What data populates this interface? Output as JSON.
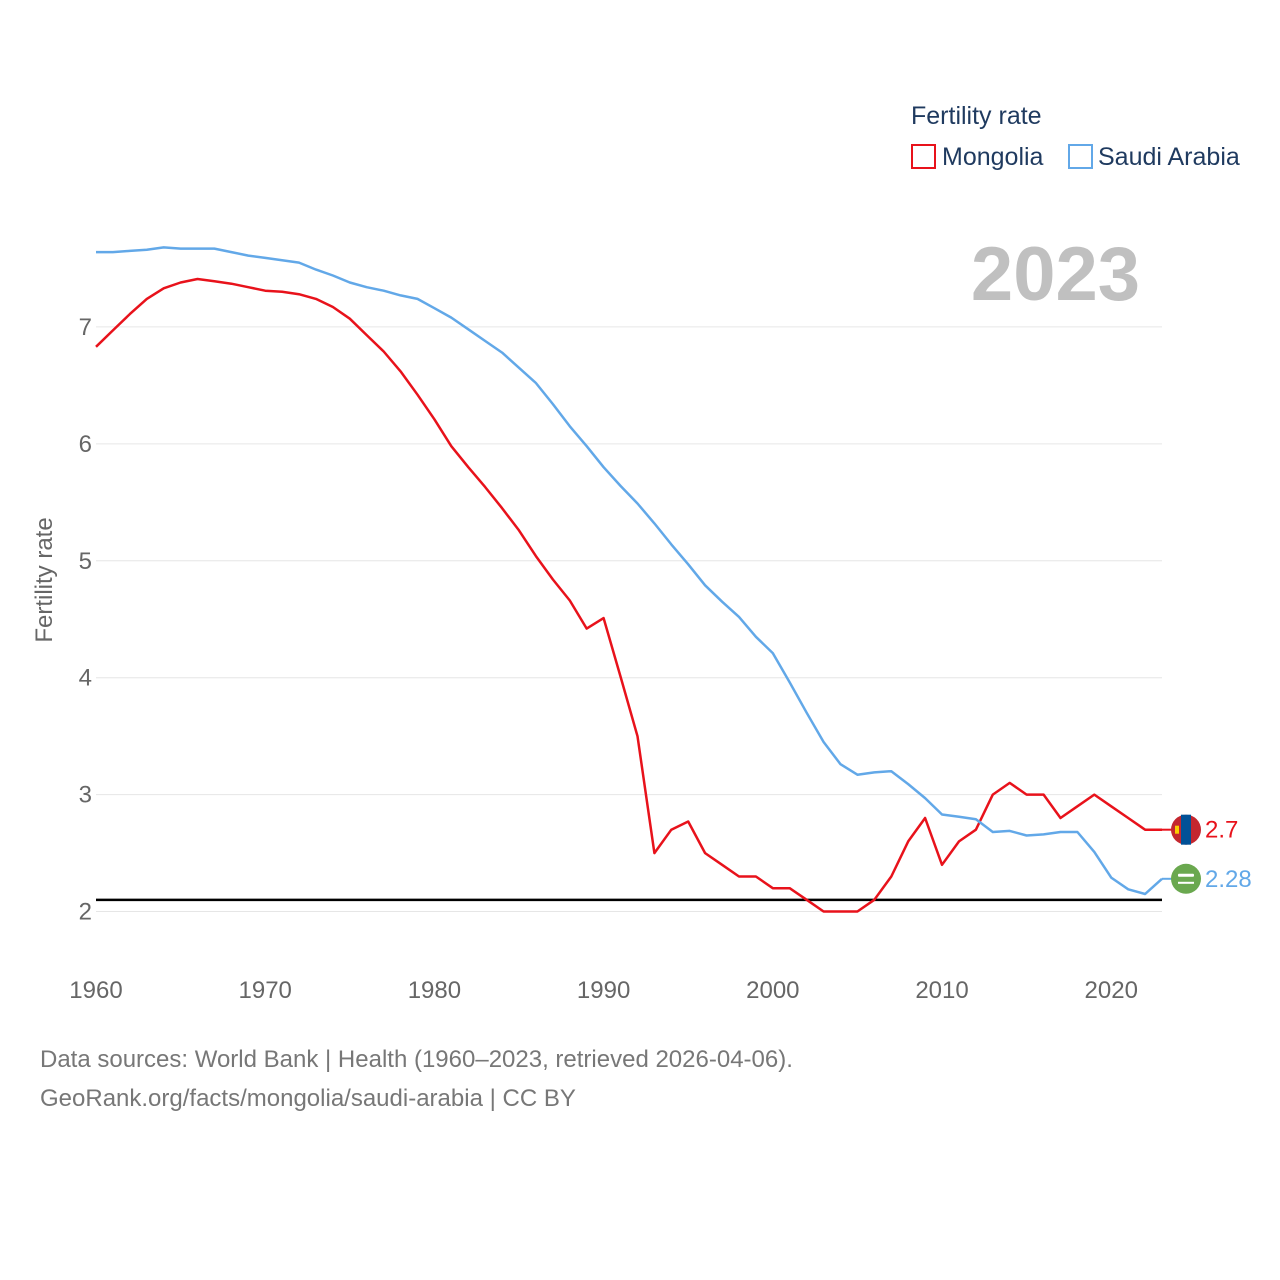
{
  "colors": {
    "mongolia": "#e8121b",
    "saudi_arabia": "#62a8e8",
    "grid": "#e6e6e6",
    "reference": "#000000"
  },
  "chart_data": {
    "type": "line",
    "title": "Fertility rate",
    "ylabel": "Fertility rate",
    "xlabel": "",
    "year_label": "2023",
    "xlim": [
      1960,
      2023
    ],
    "ylim": [
      1.5,
      8
    ],
    "x_ticks": [
      1960,
      1970,
      1980,
      1990,
      2000,
      2010,
      2020
    ],
    "y_ticks": [
      2,
      3,
      4,
      5,
      6,
      7
    ],
    "grid": true,
    "legend_position": "top-right",
    "reference_line": 2.1,
    "x": [
      1960,
      1961,
      1962,
      1963,
      1964,
      1965,
      1966,
      1967,
      1968,
      1969,
      1970,
      1971,
      1972,
      1973,
      1974,
      1975,
      1976,
      1977,
      1978,
      1979,
      1980,
      1981,
      1982,
      1983,
      1984,
      1985,
      1986,
      1987,
      1988,
      1989,
      1990,
      1991,
      1992,
      1993,
      1994,
      1995,
      1996,
      1997,
      1998,
      1999,
      2000,
      2001,
      2002,
      2003,
      2004,
      2005,
      2006,
      2007,
      2008,
      2009,
      2010,
      2011,
      2012,
      2013,
      2014,
      2015,
      2016,
      2017,
      2018,
      2019,
      2020,
      2021,
      2022,
      2023
    ],
    "series": [
      {
        "name": "Mongolia",
        "color_key": "mongolia",
        "end_label": "2.7",
        "values": [
          6.83,
          6.97,
          7.11,
          7.24,
          7.33,
          7.38,
          7.41,
          7.39,
          7.37,
          7.34,
          7.31,
          7.3,
          7.28,
          7.24,
          7.17,
          7.07,
          6.93,
          6.79,
          6.62,
          6.42,
          6.21,
          5.98,
          5.8,
          5.63,
          5.45,
          5.26,
          5.04,
          4.84,
          4.66,
          4.42,
          4.51,
          4.01,
          3.5,
          2.5,
          2.7,
          2.77,
          2.5,
          2.4,
          2.3,
          2.3,
          2.2,
          2.2,
          2.1,
          2.0,
          2.0,
          2.0,
          2.1,
          2.3,
          2.6,
          2.8,
          2.4,
          2.6,
          2.7,
          3.0,
          3.1,
          3.0,
          3.0,
          2.8,
          2.9,
          3.0,
          2.9,
          2.8,
          2.7,
          2.7
        ]
      },
      {
        "name": "Saudi Arabia",
        "color_key": "saudi_arabia",
        "end_label": "2.28",
        "values": [
          7.64,
          7.64,
          7.65,
          7.66,
          7.68,
          7.67,
          7.67,
          7.67,
          7.64,
          7.61,
          7.59,
          7.57,
          7.55,
          7.49,
          7.44,
          7.38,
          7.34,
          7.31,
          7.27,
          7.24,
          7.16,
          7.08,
          6.98,
          6.88,
          6.78,
          6.65,
          6.52,
          6.34,
          6.15,
          5.98,
          5.8,
          5.64,
          5.49,
          5.32,
          5.14,
          4.97,
          4.79,
          4.65,
          4.52,
          4.35,
          4.21,
          3.96,
          3.7,
          3.45,
          3.26,
          3.17,
          3.19,
          3.2,
          3.09,
          2.97,
          2.83,
          2.81,
          2.79,
          2.68,
          2.69,
          2.65,
          2.66,
          2.68,
          2.68,
          2.51,
          2.29,
          2.19,
          2.15,
          2.28
        ]
      }
    ]
  },
  "source": {
    "line1": "Data sources: World Bank | Health (1960–2023, retrieved 2026-04-06).",
    "line2": "GeoRank.org/facts/mongolia/saudi-arabia | CC BY"
  },
  "icons": {
    "mongolia_flag": "mongolia-flag-icon",
    "saudi_flag": "saudi-arabia-flag-icon"
  }
}
